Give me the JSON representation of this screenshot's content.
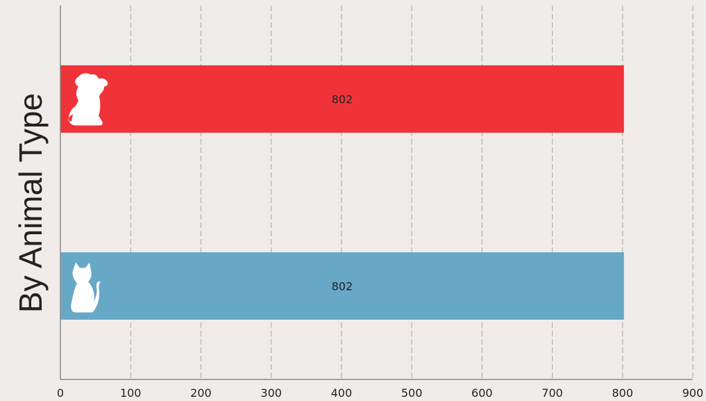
{
  "chart_data": {
    "type": "bar",
    "orientation": "horizontal",
    "title": "",
    "xlabel": "",
    "ylabel": "By Animal Type",
    "xlim": [
      0,
      900
    ],
    "x_ticks": [
      0,
      100,
      200,
      300,
      400,
      500,
      600,
      700,
      800,
      900
    ],
    "grid": true,
    "legend": "none",
    "categories": [
      {
        "icon": "dog-icon",
        "value": 802,
        "color": "#f03338"
      },
      {
        "icon": "cat-icon",
        "value": 802,
        "color": "#67a8c6"
      }
    ],
    "values": [
      802,
      802
    ],
    "data_labels": [
      "802",
      "802"
    ]
  },
  "colors": {
    "background": "#f0ecea",
    "grid": "#a8a6a5",
    "axis": "#8a8887",
    "icon": "#ffffff"
  }
}
